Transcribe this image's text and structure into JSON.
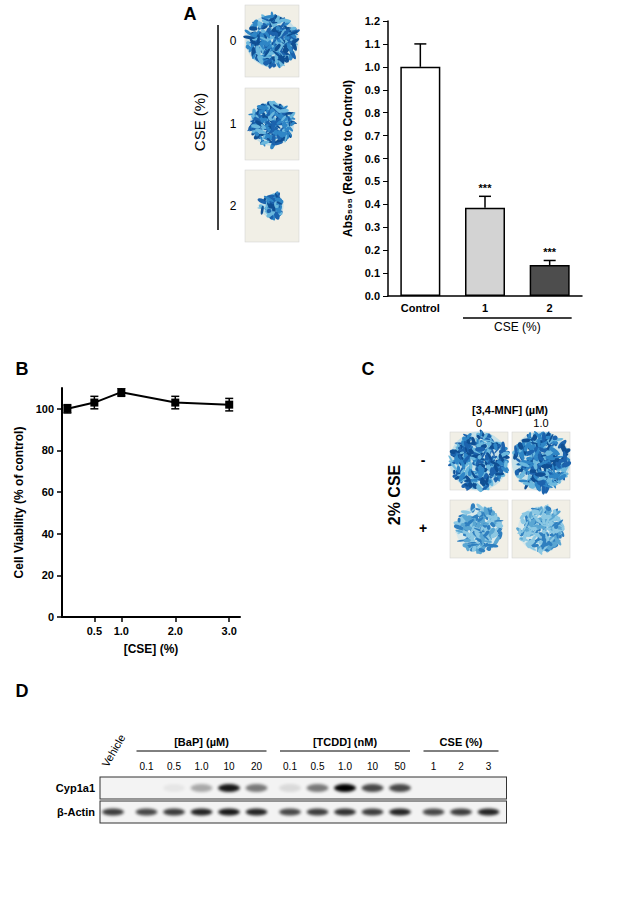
{
  "figure": {
    "A": {
      "label": "A",
      "images": {
        "title": "CSE (%)",
        "rows": [
          "0",
          "1",
          "2"
        ]
      }
    },
    "B": {
      "label": "B"
    },
    "C": {
      "label": "C",
      "images": {
        "title": "[3,4-MNF] (µM)",
        "columns": [
          "0",
          "1.0"
        ],
        "row_title": "2% CSE",
        "rows": [
          "-",
          "+"
        ]
      }
    },
    "D": {
      "label": "D",
      "vehicle": "Vehicle",
      "groups": [
        {
          "title": "[BaP] (µM)",
          "lanes": [
            "0.1",
            "0.5",
            "1.0",
            "10",
            "20"
          ]
        },
        {
          "title": "[TCDD] (nM)",
          "lanes": [
            "0.1",
            "0.5",
            "1.0",
            "10",
            "50"
          ]
        },
        {
          "title": "CSE (%)",
          "lanes": [
            "1",
            "2",
            "3"
          ]
        }
      ],
      "rows": [
        {
          "name": "Cyp1a1",
          "intensity": [
            0,
            0,
            0.05,
            0.3,
            0.9,
            0.5,
            0.1,
            0.5,
            1.0,
            0.7,
            0.7,
            0,
            0,
            0
          ]
        },
        {
          "name": "β-Actin",
          "intensity": [
            0.75,
            0.7,
            0.75,
            0.85,
            0.9,
            0.85,
            0.7,
            0.75,
            0.8,
            0.75,
            0.85,
            0.7,
            0.75,
            0.85
          ]
        }
      ]
    }
  },
  "chart_data": [
    {
      "type": "bar",
      "categories": [
        "Control",
        "1",
        "2"
      ],
      "values": [
        1.0,
        0.385,
        0.135
      ],
      "errors": [
        0.1,
        0.05,
        0.02
      ],
      "annotations": [
        null,
        "***",
        "***"
      ],
      "colors": [
        "#ffffff",
        "#d3d3d3",
        "#4d4d4d"
      ],
      "ylabel": "Abs₅₉₅ (Relative to Control)",
      "group_label": {
        "text": "CSE (%)",
        "categories": [
          "1",
          "2"
        ]
      },
      "ylim": [
        0,
        1.2
      ],
      "yticks": [
        {
          "value": 0,
          "label": "0.0"
        },
        0.1,
        0.2,
        0.3,
        0.4,
        0.5,
        0.6,
        0.7,
        0.8,
        0.9,
        {
          "value": 1,
          "label": "1.0"
        },
        1.1,
        1.2
      ],
      "grid": false
    },
    {
      "type": "line",
      "x": [
        0,
        0.5,
        1,
        2,
        3
      ],
      "values": [
        100,
        103,
        108,
        103,
        102
      ],
      "errors": [
        2,
        3,
        2,
        3,
        3
      ],
      "xlabel": "[CSE] (%)",
      "ylabel": "Cell Viability (% of control)",
      "xlim": [
        -0.1,
        3.2
      ],
      "xticks": [
        0.5,
        {
          "value": 1,
          "label": "1.0"
        },
        {
          "value": 2,
          "label": "2.0"
        },
        {
          "value": 3,
          "label": "3.0"
        }
      ],
      "ylim": [
        0,
        110
      ],
      "yticks": [
        0,
        20,
        40,
        60,
        80,
        100
      ],
      "color": "#000000",
      "marker": "square",
      "grid": false
    }
  ]
}
